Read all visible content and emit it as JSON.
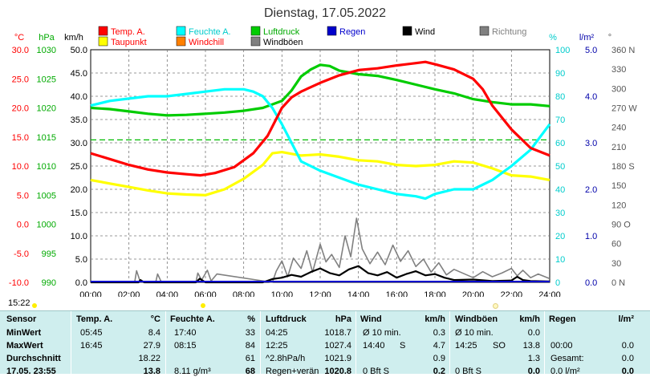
{
  "chart_data": {
    "type": "line",
    "title": "Dienstag, 17.05.2022",
    "x_ticks": [
      "00:00",
      "02:00",
      "04:00",
      "06:00",
      "08:00",
      "10:00",
      "12:00",
      "14:00",
      "16:00",
      "18:00",
      "20:00",
      "22:00",
      "24:00"
    ],
    "axes": {
      "temp": {
        "unit": "°C",
        "ticks": [
          "-10.0",
          "-5.0",
          "0.0",
          "5.0",
          "10.0",
          "15.0",
          "20.0",
          "25.0",
          "30.0"
        ],
        "color": "#ff0000",
        "range": [
          -10,
          30
        ]
      },
      "pressure": {
        "unit": "hPa",
        "ticks": [
          "990",
          "995",
          "1000",
          "1005",
          "1010",
          "1015",
          "1020",
          "1025",
          "1030"
        ],
        "color": "#00aa00",
        "range": [
          990,
          1030
        ]
      },
      "wind": {
        "unit": "km/h",
        "ticks": [
          "0.0",
          "5.0",
          "10.0",
          "15.0",
          "20.0",
          "25.0",
          "30.0",
          "35.0",
          "40.0",
          "45.0",
          "50.0"
        ],
        "color": "#000000",
        "range": [
          0,
          50
        ]
      },
      "humidity": {
        "unit": "%",
        "ticks": [
          "0",
          "10",
          "20",
          "30",
          "40",
          "50",
          "60",
          "70",
          "80",
          "90",
          "100"
        ],
        "color": "#00cccc",
        "range": [
          0,
          100
        ]
      },
      "rain": {
        "unit": "l/m²",
        "ticks": [
          "0.0",
          "1.0",
          "2.0",
          "3.0",
          "4.0",
          "5.0"
        ],
        "color": "#0000aa",
        "range": [
          0,
          5
        ]
      },
      "direction": {
        "unit": "°",
        "ticks": [
          "0 N",
          "30",
          "60",
          "90 O",
          "120",
          "150",
          "180 S",
          "210",
          "240",
          "270 W",
          "300",
          "330",
          "360 N"
        ],
        "color": "#555555",
        "range": [
          0,
          360
        ]
      }
    },
    "legend": [
      {
        "name": "Temp. A.",
        "color": "#ff0000",
        "text_color": "#ff0000"
      },
      {
        "name": "Feuchte A.",
        "color": "#00ffff",
        "text_color": "#00cccc"
      },
      {
        "name": "Luftdruck",
        "color": "#00cc00",
        "text_color": "#00aa00"
      },
      {
        "name": "Regen",
        "color": "#0000cc",
        "text_color": "#0000cc"
      },
      {
        "name": "Wind",
        "color": "#000000",
        "text_color": "#000000"
      },
      {
        "name": "Richtung",
        "color": "#808080",
        "text_color": "#808080"
      },
      {
        "name": "Taupunkt",
        "color": "#ffff00",
        "text_color": "#ff0000"
      },
      {
        "name": "Windchill",
        "color": "#ff8000",
        "text_color": "#ff0000"
      },
      {
        "name": "Windböen",
        "color": "#808080",
        "text_color": "#000000"
      }
    ],
    "series": [
      {
        "name": "Temp. A.",
        "axis": "temp",
        "color": "#ff0000",
        "x": [
          0,
          1,
          2,
          3,
          4,
          5,
          5.75,
          6.5,
          7.5,
          8.5,
          9.25,
          10,
          10.5,
          11,
          12,
          13,
          14,
          15,
          16,
          17,
          17.5,
          18,
          19,
          20,
          20.5,
          21,
          22,
          23,
          24
        ],
        "y": [
          12.2,
          11.2,
          10.2,
          9.4,
          8.9,
          8.6,
          8.4,
          8.8,
          9.8,
          12.2,
          15.2,
          20.0,
          21.8,
          22.8,
          24.3,
          25.6,
          26.5,
          26.8,
          27.3,
          27.7,
          27.9,
          27.5,
          26.6,
          25.0,
          23.2,
          20.4,
          16.3,
          13.1,
          11.8
        ]
      },
      {
        "name": "Feuchte A.",
        "axis": "humidity",
        "color": "#00ffff",
        "x": [
          0,
          1,
          2,
          3,
          4,
          5,
          6,
          7,
          8,
          8.5,
          9,
          9.5,
          10,
          10.5,
          11,
          12,
          13,
          14,
          15,
          16,
          17,
          17.5,
          18,
          19,
          20,
          21,
          22,
          23,
          24
        ],
        "y": [
          76,
          78,
          79,
          80,
          80,
          81,
          82,
          83,
          83,
          82,
          80,
          75,
          68,
          60,
          52,
          48,
          45,
          42,
          40,
          38,
          37,
          36,
          38,
          40,
          40,
          44,
          50,
          57,
          68
        ]
      },
      {
        "name": "Luftdruck",
        "axis": "pressure",
        "color": "#00cc00",
        "x": [
          0,
          1,
          2,
          3,
          4,
          5,
          6,
          7,
          8,
          9,
          10,
          10.5,
          11,
          11.5,
          12,
          12.5,
          13,
          14,
          15,
          16,
          17,
          18,
          19,
          20,
          21,
          22,
          23,
          24
        ],
        "y": [
          1020.0,
          1019.8,
          1019.4,
          1019.0,
          1018.7,
          1018.8,
          1019.0,
          1019.2,
          1019.5,
          1020.0,
          1021.2,
          1023.0,
          1025.4,
          1026.6,
          1027.4,
          1027.2,
          1026.4,
          1025.8,
          1025.5,
          1024.8,
          1024.0,
          1023.2,
          1022.5,
          1021.5,
          1021.0,
          1020.6,
          1020.6,
          1020.3
        ]
      },
      {
        "name": "Taupunkt",
        "axis": "temp",
        "color": "#ffff00",
        "x": [
          0,
          1,
          2,
          3,
          4,
          5,
          6,
          7,
          8,
          9,
          9.5,
          10,
          11,
          12,
          13,
          14,
          15,
          16,
          17,
          18,
          19,
          20,
          21,
          22,
          23,
          24
        ],
        "y": [
          7.6,
          7.0,
          6.4,
          5.8,
          5.3,
          5.1,
          5.0,
          6.0,
          7.8,
          10.2,
          12.2,
          12.4,
          11.8,
          12.0,
          11.6,
          11.0,
          10.8,
          10.2,
          10.0,
          10.2,
          10.8,
          10.6,
          9.6,
          8.4,
          8.2,
          7.6
        ]
      },
      {
        "name": "Wind",
        "axis": "wind",
        "color": "#000000",
        "x": [
          0,
          2.5,
          2.6,
          2.8,
          3,
          5.5,
          5.7,
          6,
          9,
          9.5,
          10,
          10.5,
          11,
          11.5,
          12,
          12.5,
          13,
          13.5,
          14,
          14.5,
          15,
          15.5,
          16,
          16.5,
          17,
          17.5,
          18,
          18.5,
          19,
          20,
          21,
          22,
          22.3,
          22.6,
          23,
          24
        ],
        "y": [
          0,
          0,
          0.5,
          0,
          0,
          0,
          0.8,
          0,
          0,
          0.7,
          1.0,
          1.6,
          1.2,
          2.2,
          3.0,
          2.0,
          1.5,
          2.8,
          3.5,
          2.0,
          1.5,
          2.2,
          1.0,
          1.8,
          2.4,
          1.5,
          1.8,
          1.0,
          0.5,
          0.6,
          0.3,
          0.4,
          1.2,
          0.5,
          0.3,
          0.2
        ]
      },
      {
        "name": "Windböen",
        "axis": "wind",
        "color": "#808080",
        "x": [
          0,
          2.3,
          2.4,
          2.6,
          3.4,
          3.5,
          3.7,
          5.5,
          5.6,
          5.8,
          6.1,
          6.3,
          6.6,
          9.5,
          9.7,
          10,
          10.3,
          10.6,
          11,
          11.3,
          11.6,
          12,
          12.3,
          12.6,
          13,
          13.3,
          13.6,
          13.9,
          14.2,
          14.6,
          15,
          15.4,
          15.8,
          16.2,
          16.6,
          17,
          17.4,
          17.8,
          18.2,
          18.6,
          19,
          20,
          20.5,
          21,
          21.5,
          22,
          22.3,
          22.6,
          23,
          23.4,
          24
        ],
        "y": [
          0,
          0,
          2.5,
          0,
          0,
          1.8,
          0,
          0,
          2.0,
          0.5,
          2.6,
          0.3,
          1.8,
          0,
          2.4,
          4.6,
          1.2,
          5.2,
          3.0,
          6.8,
          2.2,
          8.2,
          4.4,
          6.0,
          3.2,
          10.0,
          5.5,
          13.8,
          7.2,
          4.0,
          6.5,
          3.8,
          8.0,
          4.5,
          6.8,
          3.4,
          5.0,
          2.2,
          4.2,
          1.6,
          2.8,
          1.0,
          2.3,
          1.2,
          2.0,
          3.0,
          1.4,
          2.6,
          1.0,
          1.8,
          0.8
        ]
      }
    ],
    "reference_line": {
      "value_pressure": 1014.5,
      "color": "#00bb00",
      "style": "dashed"
    },
    "grid": true
  },
  "time_label": "15:22",
  "stats": {
    "headers": {
      "sensor": "Sensor",
      "temp": "Temp. A.",
      "temp_unit": "°C",
      "hum": "Feuchte A.",
      "hum_unit": "%",
      "pres": "Luftdruck",
      "pres_unit": "hPa",
      "wind": "Wind",
      "wind_unit": "km/h",
      "gust": "Windböen",
      "gust_unit": "km/h",
      "rain": "Regen",
      "rain_unit": "l/m²"
    },
    "rows": [
      {
        "label": "MinWert",
        "temp_time": "05:45",
        "temp_val": "8.4",
        "hum_time": "17:40",
        "hum_val": "33",
        "pres_time": "04:25",
        "pres_val": "1018.7",
        "wind_time": "Ø 10 min.",
        "wind_val": "0.3",
        "gust_time": "Ø 10 min.",
        "gust_val": "0.0",
        "rain_time": "",
        "rain_val": ""
      },
      {
        "label": "MaxWert",
        "temp_time": "16:45",
        "temp_val": "27.9",
        "hum_time": "08:15",
        "hum_val": "84",
        "pres_time": "12:25",
        "pres_val": "1027.4",
        "wind_time": "14:40",
        "wind_dir": "S",
        "wind_val": "4.7",
        "gust_time": "14:25",
        "gust_dir": "SO",
        "gust_val": "13.8",
        "rain_time": "00:00",
        "rain_val": "0.0"
      },
      {
        "label": "Durchschnitt",
        "temp_time": "",
        "temp_val": "18.22",
        "hum_time": "",
        "hum_val": "61",
        "pres_time": "^2.8hPa/h",
        "pres_val": "1021.9",
        "wind_time": "",
        "wind_val": "0.9",
        "gust_time": "",
        "gust_val": "1.3",
        "rain_time": "Gesamt:",
        "rain_val": "0.0"
      },
      {
        "label": "17.05. 23:55",
        "temp_time": "",
        "temp_val": "13.8",
        "hum_time": "8.11 g/m³",
        "hum_val": "68",
        "pres_time": "Regen+verän",
        "pres_val": "1020.8",
        "wind_time": "0 Bft S",
        "wind_val": "0.2",
        "gust_time": "0 Bft S",
        "gust_val": "0.0",
        "rain_time": "0.0 l/m²",
        "rain_val": "0.0"
      }
    ]
  }
}
